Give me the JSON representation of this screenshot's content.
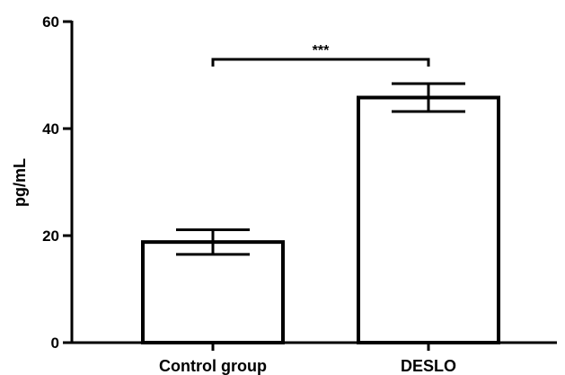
{
  "chart_data": {
    "type": "bar",
    "categories": [
      "Control group",
      "DESLO"
    ],
    "values": [
      18.8,
      45.8
    ],
    "errors": [
      2.3,
      2.6
    ],
    "ylabel": "pg/mL",
    "xlabel": "",
    "ylim": [
      0,
      60
    ],
    "yticks": [
      0,
      20,
      40,
      60
    ],
    "grid": false,
    "significance": {
      "between": [
        0,
        1
      ],
      "label": "***"
    }
  }
}
